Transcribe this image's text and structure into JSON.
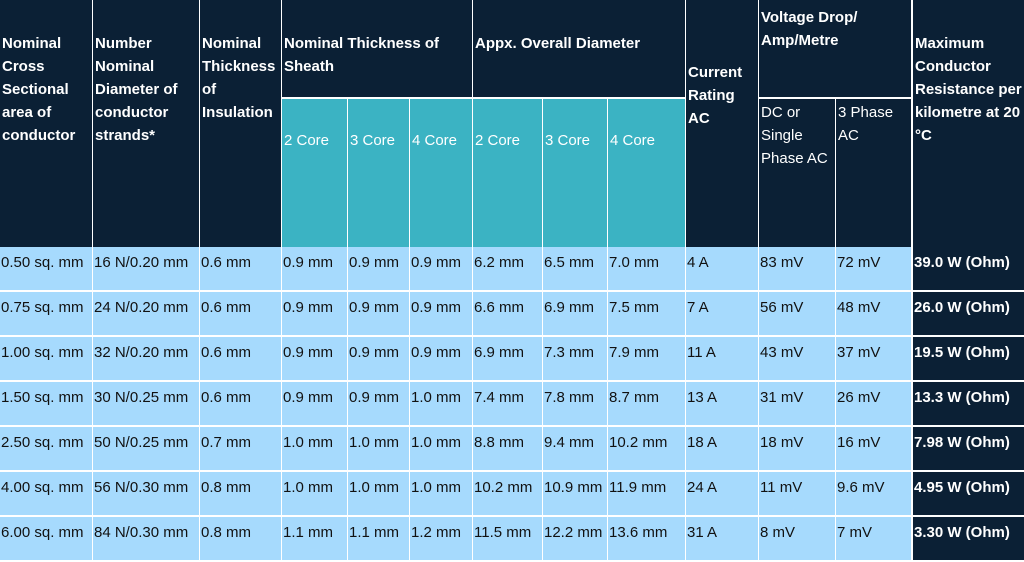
{
  "headers": {
    "nominal_csa": "Nominal Cross Sectional area of conductor",
    "strands": "Number Nominal Diameter of conductor strands*",
    "insulation": "Nominal Thickness of Insulation",
    "sheath": "Nominal Thickness of Sheath",
    "diameter": "Appx. Overall Diameter",
    "current": "Current Rating AC",
    "vdrop": "Voltage Drop/ Amp/Metre",
    "resistance": "Maximum Conductor Resistance per kilometre at 20 °C"
  },
  "subheaders": {
    "core2": "2 Core",
    "core3": "3 Core",
    "core4": "4 Core",
    "dc": "DC or Single Phase AC",
    "ac3": "3 Phase AC"
  },
  "rows": [
    [
      "0.50 sq. mm",
      "16 N/0.20 mm",
      "0.6 mm",
      "0.9 mm",
      "0.9 mm",
      "0.9 mm",
      "6.2 mm",
      "6.5 mm",
      "7.0 mm",
      "4 A",
      "83 mV",
      "72 mV",
      "39.0 W (Ohm)"
    ],
    [
      "0.75 sq. mm",
      "24 N/0.20 mm",
      "0.6 mm",
      "0.9 mm",
      "0.9 mm",
      "0.9 mm",
      "6.6 mm",
      "6.9 mm",
      "7.5 mm",
      "7 A",
      "56 mV",
      "48 mV",
      "26.0 W (Ohm)"
    ],
    [
      "1.00 sq. mm",
      "32 N/0.20 mm",
      "0.6 mm",
      "0.9 mm",
      "0.9 mm",
      "0.9 mm",
      "6.9 mm",
      "7.3 mm",
      "7.9 mm",
      "11 A",
      "43 mV",
      "37 mV",
      "19.5 W (Ohm)"
    ],
    [
      "1.50 sq. mm",
      "30 N/0.25 mm",
      "0.6 mm",
      "0.9 mm",
      "0.9 mm",
      "1.0 mm",
      "7.4 mm",
      "7.8 mm",
      "8.7 mm",
      "13 A",
      "31 mV",
      "26 mV",
      "13.3 W (Ohm)"
    ],
    [
      "2.50 sq. mm",
      "50 N/0.25 mm",
      "0.7 mm",
      "1.0 mm",
      "1.0 mm",
      "1.0 mm",
      "8.8 mm",
      "9.4 mm",
      "10.2 mm",
      "18 A",
      "18 mV",
      "16 mV",
      "7.98 W (Ohm)"
    ],
    [
      "4.00 sq. mm",
      "56 N/0.30 mm",
      "0.8 mm",
      "1.0 mm",
      "1.0 mm",
      "1.0 mm",
      "10.2 mm",
      "10.9 mm",
      "11.9 mm",
      "24 A",
      "11 mV",
      "9.6 mV",
      "4.95 W (Ohm)"
    ],
    [
      "6.00 sq. mm",
      "84 N/0.30 mm",
      "0.8 mm",
      "1.1 mm",
      "1.1 mm",
      "1.2 mm",
      "11.5 mm",
      "12.2 mm",
      "13.6 mm",
      "31 A",
      "8 mV",
      "7 mV",
      "3.30 W (Ohm)"
    ]
  ]
}
